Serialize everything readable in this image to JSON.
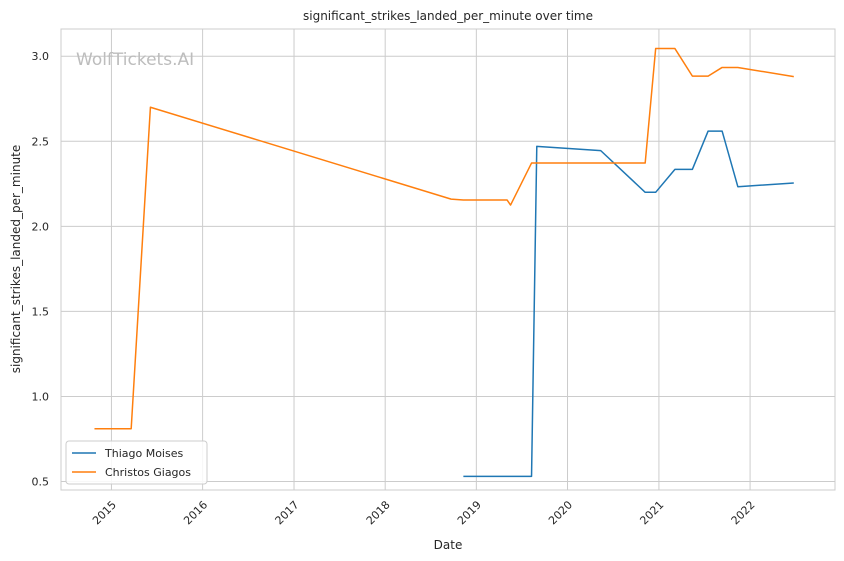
{
  "chart_data": {
    "type": "line",
    "title": "significant_strikes_landed_per_minute over time",
    "xlabel": "Date",
    "ylabel": "significant_strikes_landed_per_minute",
    "watermark": "WolfTickets.AI",
    "x_ticks": [
      "2015",
      "2016",
      "2017",
      "2018",
      "2019",
      "2020",
      "2021",
      "2022"
    ],
    "y_ticks": [
      "0.5",
      "1.0",
      "1.5",
      "2.0",
      "2.5",
      "3.0"
    ],
    "ylim": [
      0.45,
      3.16
    ],
    "xlim": [
      "2014-06-13",
      "2022-12-07"
    ],
    "grid": true,
    "legend_position": "lower-left",
    "series": [
      {
        "name": "Thiago Moises",
        "color": "#1f77b4",
        "points": [
          [
            "2018-11-10",
            0.53
          ],
          [
            "2019-08-10",
            0.53
          ],
          [
            "2019-08-31",
            2.47
          ],
          [
            "2020-05-13",
            2.445
          ],
          [
            "2020-11-07",
            2.2
          ],
          [
            "2020-12-19",
            2.2
          ],
          [
            "2021-03-06",
            2.335
          ],
          [
            "2021-05-15",
            2.335
          ],
          [
            "2021-07-17",
            2.56
          ],
          [
            "2021-09-11",
            2.56
          ],
          [
            "2021-11-13",
            2.233
          ],
          [
            "2022-06-25",
            2.255
          ]
        ]
      },
      {
        "name": "Christos Giagos",
        "color": "#ff7f0e",
        "points": [
          [
            "2014-10-25",
            0.81
          ],
          [
            "2015-03-21",
            0.81
          ],
          [
            "2015-06-06",
            2.7
          ],
          [
            "2018-09-22",
            2.16
          ],
          [
            "2018-11-10",
            2.155
          ],
          [
            "2019-05-04",
            2.155
          ],
          [
            "2019-05-18",
            2.125
          ],
          [
            "2019-08-10",
            2.372
          ],
          [
            "2020-11-07",
            2.372
          ],
          [
            "2020-12-19",
            3.045
          ],
          [
            "2021-03-06",
            3.045
          ],
          [
            "2021-05-15",
            2.883
          ],
          [
            "2021-07-17",
            2.883
          ],
          [
            "2021-09-11",
            2.934
          ],
          [
            "2021-11-13",
            2.934
          ],
          [
            "2022-06-25",
            2.88
          ]
        ]
      }
    ]
  }
}
